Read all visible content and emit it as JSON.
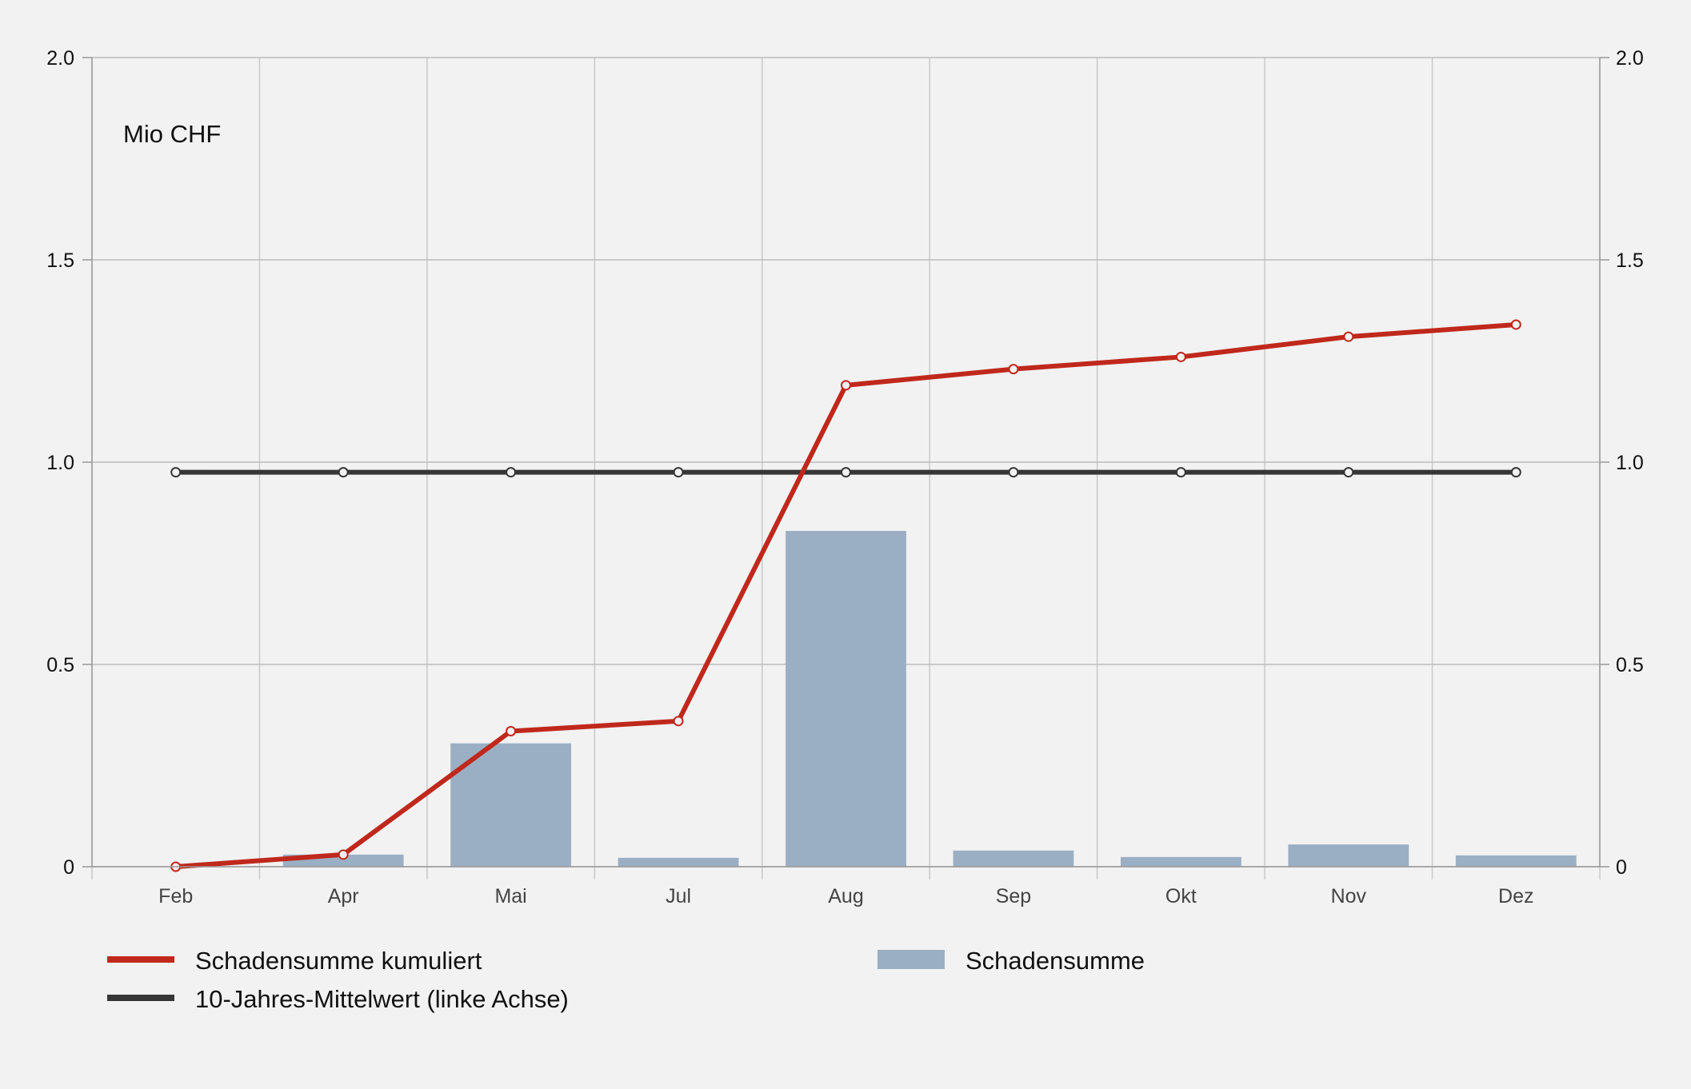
{
  "chart_data": {
    "type": "bar",
    "unit_label": "Mio CHF",
    "categories": [
      "Feb",
      "Apr",
      "Mai",
      "Jul",
      "Aug",
      "Sep",
      "Okt",
      "Nov",
      "Dez"
    ],
    "y_left": {
      "ylim": [
        0,
        2.0
      ],
      "ticks": [
        "0",
        "0.5",
        "1.0",
        "1.5",
        "2.0"
      ],
      "tick_values": [
        0,
        0.5,
        1.0,
        1.5,
        2.0
      ]
    },
    "y_right": {
      "ylim": [
        0,
        2.0
      ],
      "ticks": [
        "0",
        "0.5",
        "1.0",
        "1.5",
        "2.0"
      ],
      "tick_values": [
        0,
        0.5,
        1.0,
        1.5,
        2.0
      ]
    },
    "grid": true,
    "legend_position": "bottom",
    "series": [
      {
        "name": "Schadensumme kumuliert",
        "type": "line",
        "color": "#c0281c",
        "marker": "open-circle",
        "values": [
          0.0,
          0.03,
          0.335,
          0.36,
          1.19,
          1.23,
          1.26,
          1.31,
          1.34
        ]
      },
      {
        "name": "10-Jahres-Mittelwert (linke Achse)",
        "type": "line",
        "color": "#363636",
        "marker": "open-circle",
        "values": [
          0.975,
          0.975,
          0.975,
          0.975,
          0.975,
          0.975,
          0.975,
          0.975,
          0.975
        ]
      },
      {
        "name": "Schadensumme",
        "type": "bar",
        "color": "#9bafc4",
        "values": [
          0.0,
          0.03,
          0.305,
          0.022,
          0.83,
          0.04,
          0.024,
          0.055,
          0.028
        ]
      }
    ]
  }
}
